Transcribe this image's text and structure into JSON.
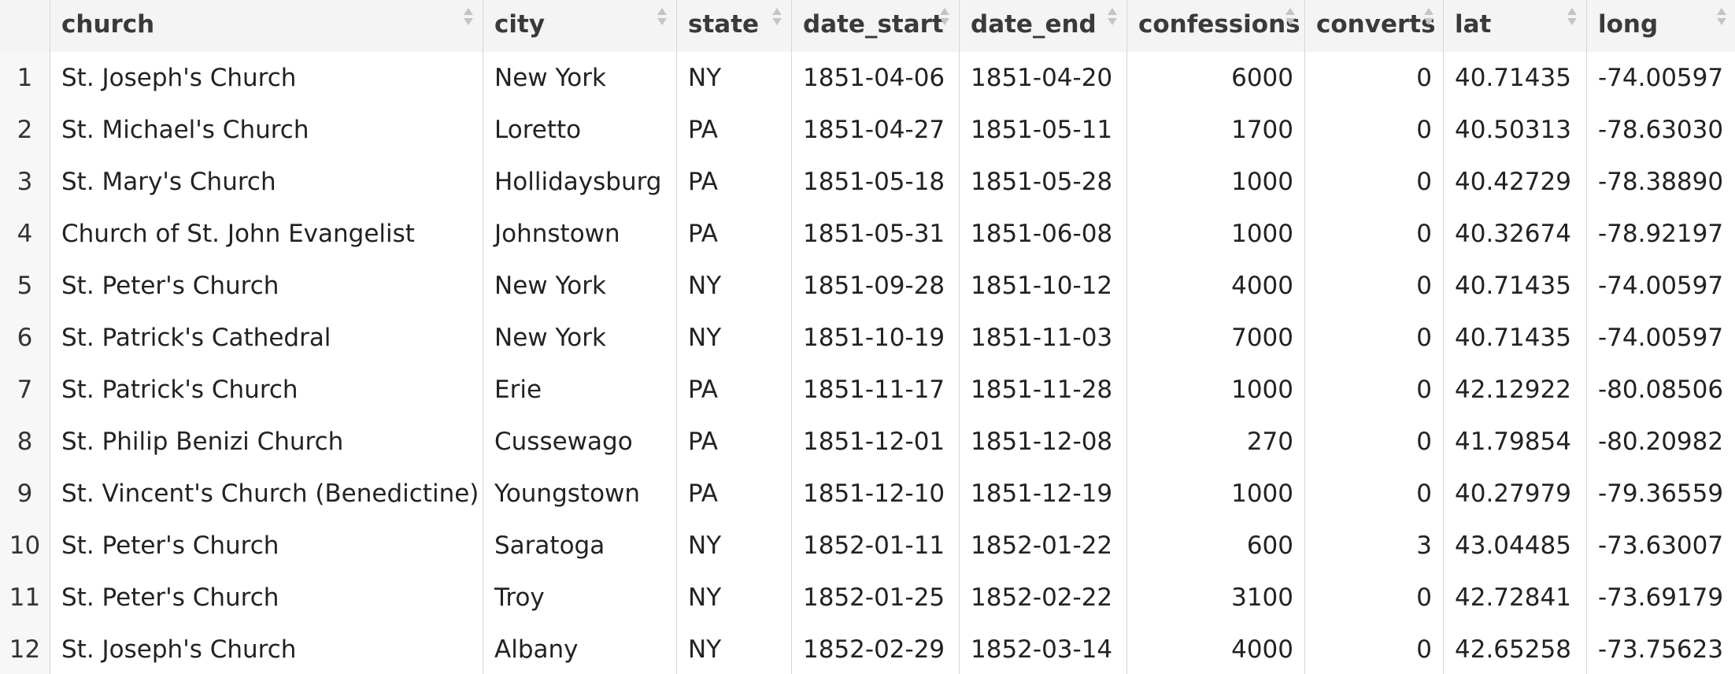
{
  "table": {
    "columns": [
      {
        "label": "church",
        "align": "left"
      },
      {
        "label": "city",
        "align": "left"
      },
      {
        "label": "state",
        "align": "left"
      },
      {
        "label": "date_start",
        "align": "left"
      },
      {
        "label": "date_end",
        "align": "left"
      },
      {
        "label": "confessions",
        "align": "right"
      },
      {
        "label": "converts",
        "align": "right"
      },
      {
        "label": "lat",
        "align": "left"
      },
      {
        "label": "long",
        "align": "left"
      }
    ],
    "rows": [
      {
        "n": "1",
        "church": "St. Joseph's Church",
        "city": "New York",
        "state": "NY",
        "date_start": "1851-04-06",
        "date_end": "1851-04-20",
        "confessions": "6000",
        "converts": "0",
        "lat": "40.71435",
        "long": "-74.00597"
      },
      {
        "n": "2",
        "church": "St. Michael's Church",
        "city": "Loretto",
        "state": "PA",
        "date_start": "1851-04-27",
        "date_end": "1851-05-11",
        "confessions": "1700",
        "converts": "0",
        "lat": "40.50313",
        "long": "-78.63030"
      },
      {
        "n": "3",
        "church": "St. Mary's Church",
        "city": "Hollidaysburg",
        "state": "PA",
        "date_start": "1851-05-18",
        "date_end": "1851-05-28",
        "confessions": "1000",
        "converts": "0",
        "lat": "40.42729",
        "long": "-78.38890"
      },
      {
        "n": "4",
        "church": "Church of St. John Evangelist",
        "city": "Johnstown",
        "state": "PA",
        "date_start": "1851-05-31",
        "date_end": "1851-06-08",
        "confessions": "1000",
        "converts": "0",
        "lat": "40.32674",
        "long": "-78.92197"
      },
      {
        "n": "5",
        "church": "St. Peter's Church",
        "city": "New York",
        "state": "NY",
        "date_start": "1851-09-28",
        "date_end": "1851-10-12",
        "confessions": "4000",
        "converts": "0",
        "lat": "40.71435",
        "long": "-74.00597"
      },
      {
        "n": "6",
        "church": "St. Patrick's Cathedral",
        "city": "New York",
        "state": "NY",
        "date_start": "1851-10-19",
        "date_end": "1851-11-03",
        "confessions": "7000",
        "converts": "0",
        "lat": "40.71435",
        "long": "-74.00597"
      },
      {
        "n": "7",
        "church": "St. Patrick's Church",
        "city": "Erie",
        "state": "PA",
        "date_start": "1851-11-17",
        "date_end": "1851-11-28",
        "confessions": "1000",
        "converts": "0",
        "lat": "42.12922",
        "long": "-80.08506"
      },
      {
        "n": "8",
        "church": "St. Philip Benizi Church",
        "city": "Cussewago",
        "state": "PA",
        "date_start": "1851-12-01",
        "date_end": "1851-12-08",
        "confessions": "270",
        "converts": "0",
        "lat": "41.79854",
        "long": "-80.20982"
      },
      {
        "n": "9",
        "church": "St. Vincent's Church (Benedictine)",
        "city": "Youngstown",
        "state": "PA",
        "date_start": "1851-12-10",
        "date_end": "1851-12-19",
        "confessions": "1000",
        "converts": "0",
        "lat": "40.27979",
        "long": "-79.36559"
      },
      {
        "n": "10",
        "church": "St. Peter's Church",
        "city": "Saratoga",
        "state": "NY",
        "date_start": "1852-01-11",
        "date_end": "1852-01-22",
        "confessions": "600",
        "converts": "3",
        "lat": "43.04485",
        "long": "-73.63007"
      },
      {
        "n": "11",
        "church": "St. Peter's Church",
        "city": "Troy",
        "state": "NY",
        "date_start": "1852-01-25",
        "date_end": "1852-02-22",
        "confessions": "3100",
        "converts": "0",
        "lat": "42.72841",
        "long": "-73.69179"
      },
      {
        "n": "12",
        "church": "St. Joseph's Church",
        "city": "Albany",
        "state": "NY",
        "date_start": "1852-02-29",
        "date_end": "1852-03-14",
        "confessions": "4000",
        "converts": "0",
        "lat": "42.65258",
        "long": "-73.75623"
      }
    ]
  },
  "icons": {
    "sort": "sort-arrows-icon"
  }
}
